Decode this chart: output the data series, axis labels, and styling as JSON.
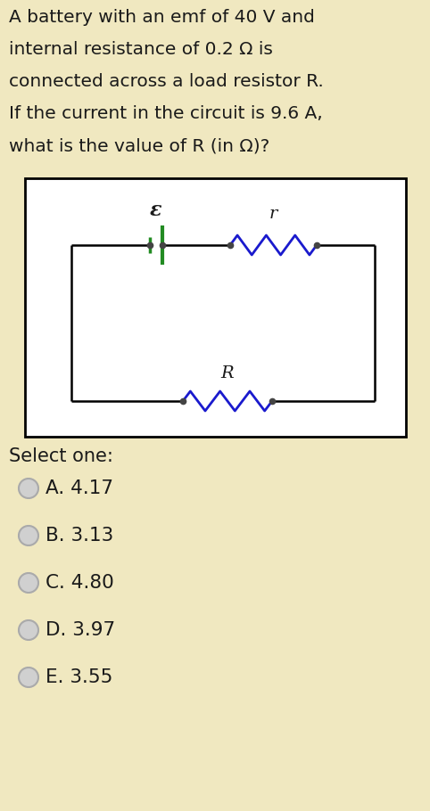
{
  "bg_color": "#f0e8c0",
  "question_text_lines": [
    "A battery with an emf of 40 V and",
    "internal resistance of 0.2 Ω is",
    "connected across a load resistor R.",
    "If the current in the circuit is 9.6 A,",
    "what is the value of R (in Ω)?"
  ],
  "circuit_box_bg": "#ffffff",
  "circuit_box_border": "#000000",
  "select_label": "Select one:",
  "options": [
    "A. 4.17",
    "B. 3.13",
    "C. 4.80",
    "D. 3.97",
    "E. 3.55"
  ],
  "wire_color": "#000000",
  "battery_color": "#228b22",
  "resistor_r_color": "#1a1acd",
  "resistor_R_color": "#1a1acd",
  "label_epsilon": "ε",
  "label_r": "r",
  "label_R": "R",
  "text_color": "#1a1a1a",
  "option_circle_fill": "#d0d0d0",
  "option_circle_border": "#aaaaaa",
  "question_fontsize": 14.5,
  "option_fontsize": 15.5,
  "select_fontsize": 15.0
}
